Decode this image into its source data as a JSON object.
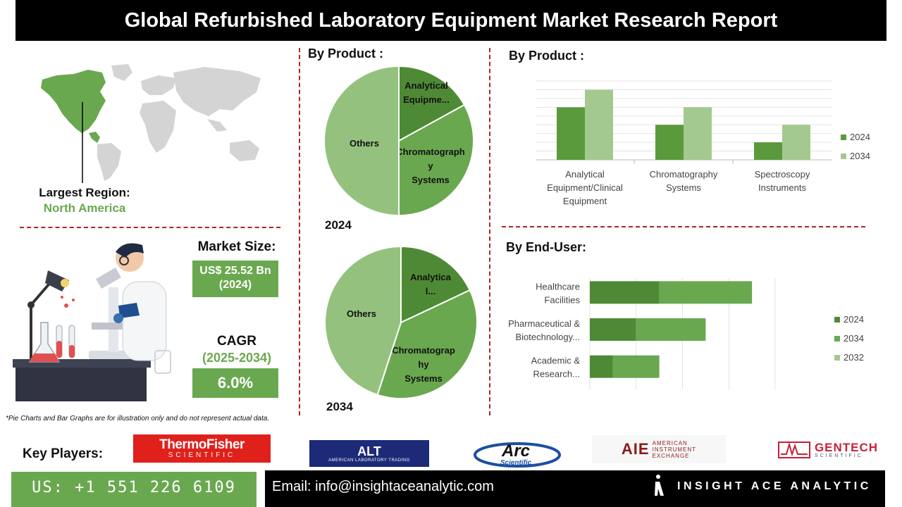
{
  "header": {
    "title": "Global Refurbished Laboratory Equipment Market Research Report"
  },
  "left": {
    "largest_region_label": "Largest Region:",
    "largest_region_value": "North America",
    "market_size_label": "Market Size:",
    "market_size_value_line1": "US$ 25.52 Bn",
    "market_size_value_line2": "(2024)",
    "cagr_label": "CAGR",
    "cagr_period": "(2025-2034)",
    "cagr_value": "6.0%"
  },
  "pie_section": {
    "title": "By Product :"
  },
  "bar_product": {
    "title": "By  Product :"
  },
  "bar_enduser": {
    "title": "By End-User:"
  },
  "disclaimer": "*Pie Charts and Bar Graphs are for illustration only and do not represent actual data.",
  "key_players": {
    "label": "Key Players:",
    "logos": [
      {
        "name": "ThermoFisher",
        "sub": "SCIENTIFIC"
      },
      {
        "name": "ALT",
        "sub": "AMERICAN LABORATORY TRADING"
      },
      {
        "name": "Arc",
        "sub": "Scientific"
      },
      {
        "name": "AIE",
        "sub1": "AMERICAN",
        "sub2": "INSTRUMENT",
        "sub3": "EXCHANGE"
      },
      {
        "name": "GENTECH",
        "sub": "SCIENTIFIC"
      }
    ]
  },
  "footer": {
    "phone": "US: +1 551 226 6109",
    "email": "Email: info@insightaceanalytic.com",
    "brand": "INSIGHT ACE ANALYTIC"
  },
  "colors": {
    "dark_green": "#5b9a3c",
    "mid_green": "#6aa84f",
    "light_green": "#9fc78a",
    "pie_dark": "#4e8a35",
    "pie_light": "#94c27e",
    "accent_red": "#b22222"
  },
  "chart_data": [
    {
      "type": "pie",
      "title": "2024",
      "slices": [
        {
          "label": "Analytical Equipme...",
          "value": 17,
          "color": "#4e8a35"
        },
        {
          "label": "Chromatograph y Systems",
          "value": 33,
          "color": "#6aa84f"
        },
        {
          "label": "Others",
          "value": 50,
          "color": "#94c27e"
        }
      ]
    },
    {
      "type": "pie",
      "title": "2034",
      "slices": [
        {
          "label": "Analytica l...",
          "value": 18,
          "color": "#4e8a35"
        },
        {
          "label": "Chromatograp hy Systems",
          "value": 37,
          "color": "#6aa84f"
        },
        {
          "label": "Others",
          "value": 45,
          "color": "#94c27e"
        }
      ]
    },
    {
      "type": "bar",
      "orientation": "vertical",
      "categories": [
        "Analytical Equipment/Clinical Equipment",
        "Chromatography Systems",
        "Spectroscopy Instruments"
      ],
      "series": [
        {
          "name": "2024",
          "values": [
            3,
            2,
            1
          ],
          "color": "#5b9a3c"
        },
        {
          "name": "2034",
          "values": [
            4,
            3,
            2
          ],
          "color": "#a3c98f"
        }
      ],
      "ylim": [
        0,
        4.5
      ],
      "grid": true,
      "legend": "right"
    },
    {
      "type": "bar",
      "orientation": "horizontal-stacked",
      "categories": [
        "Healthcare Facilities",
        "Pharmaceutical & Biotechnology...",
        "Academic & Research..."
      ],
      "series": [
        {
          "name": "2024",
          "values": [
            3,
            2,
            1
          ],
          "color": "#4e8a35"
        },
        {
          "name": "2034",
          "values": [
            4,
            3,
            2
          ],
          "color": "#6aa84f"
        },
        {
          "name": "2032",
          "values": [
            0,
            0,
            0
          ],
          "color": "#a3c98f"
        }
      ],
      "xlim": [
        0,
        8
      ],
      "grid": true,
      "legend": "right"
    }
  ]
}
